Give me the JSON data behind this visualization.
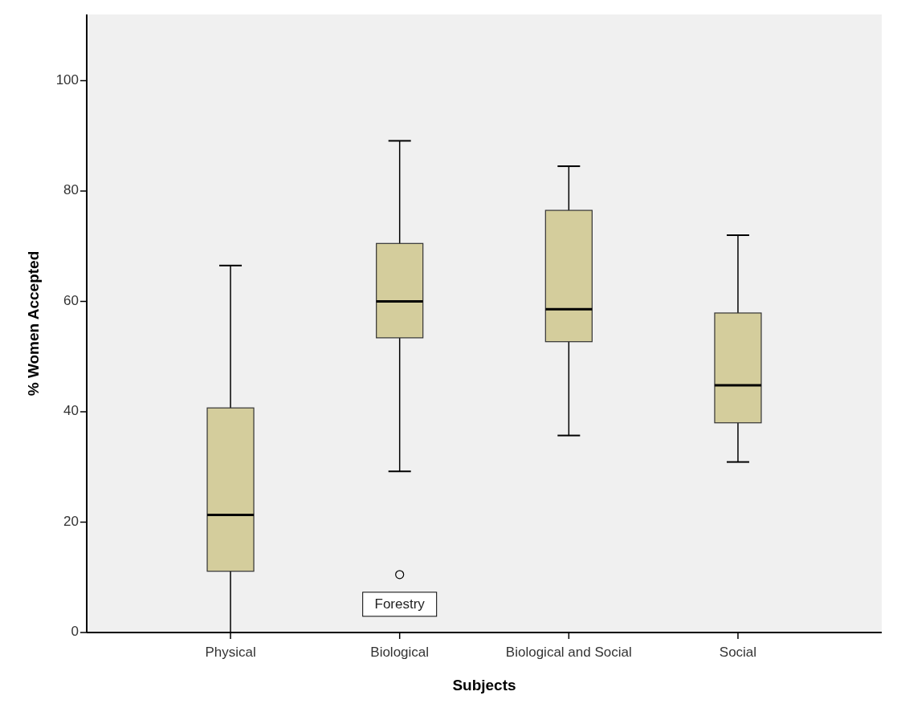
{
  "chart_data": {
    "type": "box",
    "xlabel": "Subjects",
    "ylabel": "% Women Accepted",
    "categories": [
      "Physical",
      "Biological",
      "Biological and Social",
      "Social"
    ],
    "color": "#d4cd9c",
    "ylim": [
      0,
      112
    ],
    "yticks": [
      0,
      20,
      40,
      60,
      80,
      100
    ],
    "grid": false,
    "boxes": [
      {
        "low": 0,
        "q1": 11.1,
        "median": 21.3,
        "q3": 40.7,
        "high": 66.5
      },
      {
        "low": 29.2,
        "q1": 53.4,
        "median": 60,
        "q3": 70.5,
        "high": 89.1,
        "outliers": [
          10.5
        ]
      },
      {
        "low": 35.7,
        "q1": 52.7,
        "median": 58.6,
        "q3": 76.5,
        "high": 84.5
      },
      {
        "low": 30.9,
        "q1": 38,
        "median": 44.8,
        "q3": 57.9,
        "high": 72
      }
    ],
    "annotations": [
      "Forestry"
    ]
  }
}
